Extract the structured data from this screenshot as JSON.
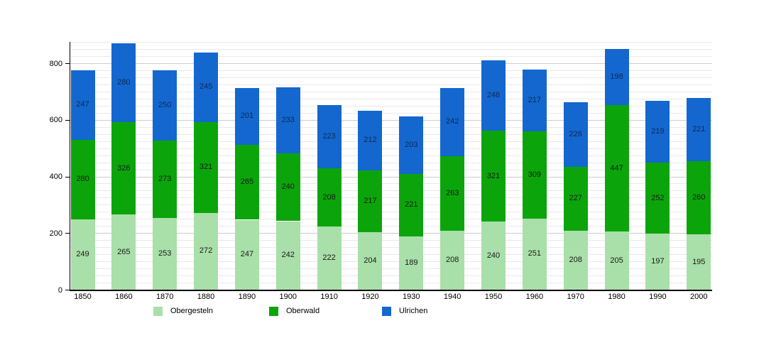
{
  "chart_data": {
    "type": "bar",
    "stacked": true,
    "title": "",
    "xlabel": "",
    "ylabel": "",
    "categories": [
      "1850",
      "1860",
      "1870",
      "1880",
      "1890",
      "1900",
      "1910",
      "1920",
      "1930",
      "1940",
      "1950",
      "1960",
      "1970",
      "1980",
      "1990",
      "2000"
    ],
    "series": [
      {
        "name": "Obergesteln",
        "color": "#a9dfa9",
        "values": [
          249,
          265,
          253,
          272,
          247,
          242,
          222,
          204,
          189,
          208,
          240,
          251,
          208,
          205,
          197,
          195
        ]
      },
      {
        "name": "Oberwald",
        "color": "#0ba50b",
        "values": [
          280,
          326,
          273,
          321,
          265,
          240,
          208,
          217,
          221,
          263,
          321,
          309,
          227,
          447,
          252,
          260
        ]
      },
      {
        "name": "Ulrichen",
        "color": "#1467ce",
        "values": [
          247,
          280,
          250,
          245,
          201,
          233,
          223,
          212,
          203,
          242,
          248,
          217,
          226,
          198,
          219,
          221
        ]
      }
    ],
    "ylim": [
      0,
      875
    ],
    "yticks": [
      0,
      200,
      400,
      600,
      800
    ],
    "ytick_labels": [
      "0",
      "200",
      "400",
      "600",
      "800"
    ],
    "grid": "horizontal minor lines every 25, major every 200",
    "legend_position": "bottom",
    "data_labels": "value centered inside each segment"
  },
  "legend": {
    "items": [
      {
        "label": "Obergesteln"
      },
      {
        "label": "Oberwald"
      },
      {
        "label": "Ulrichen"
      }
    ]
  }
}
